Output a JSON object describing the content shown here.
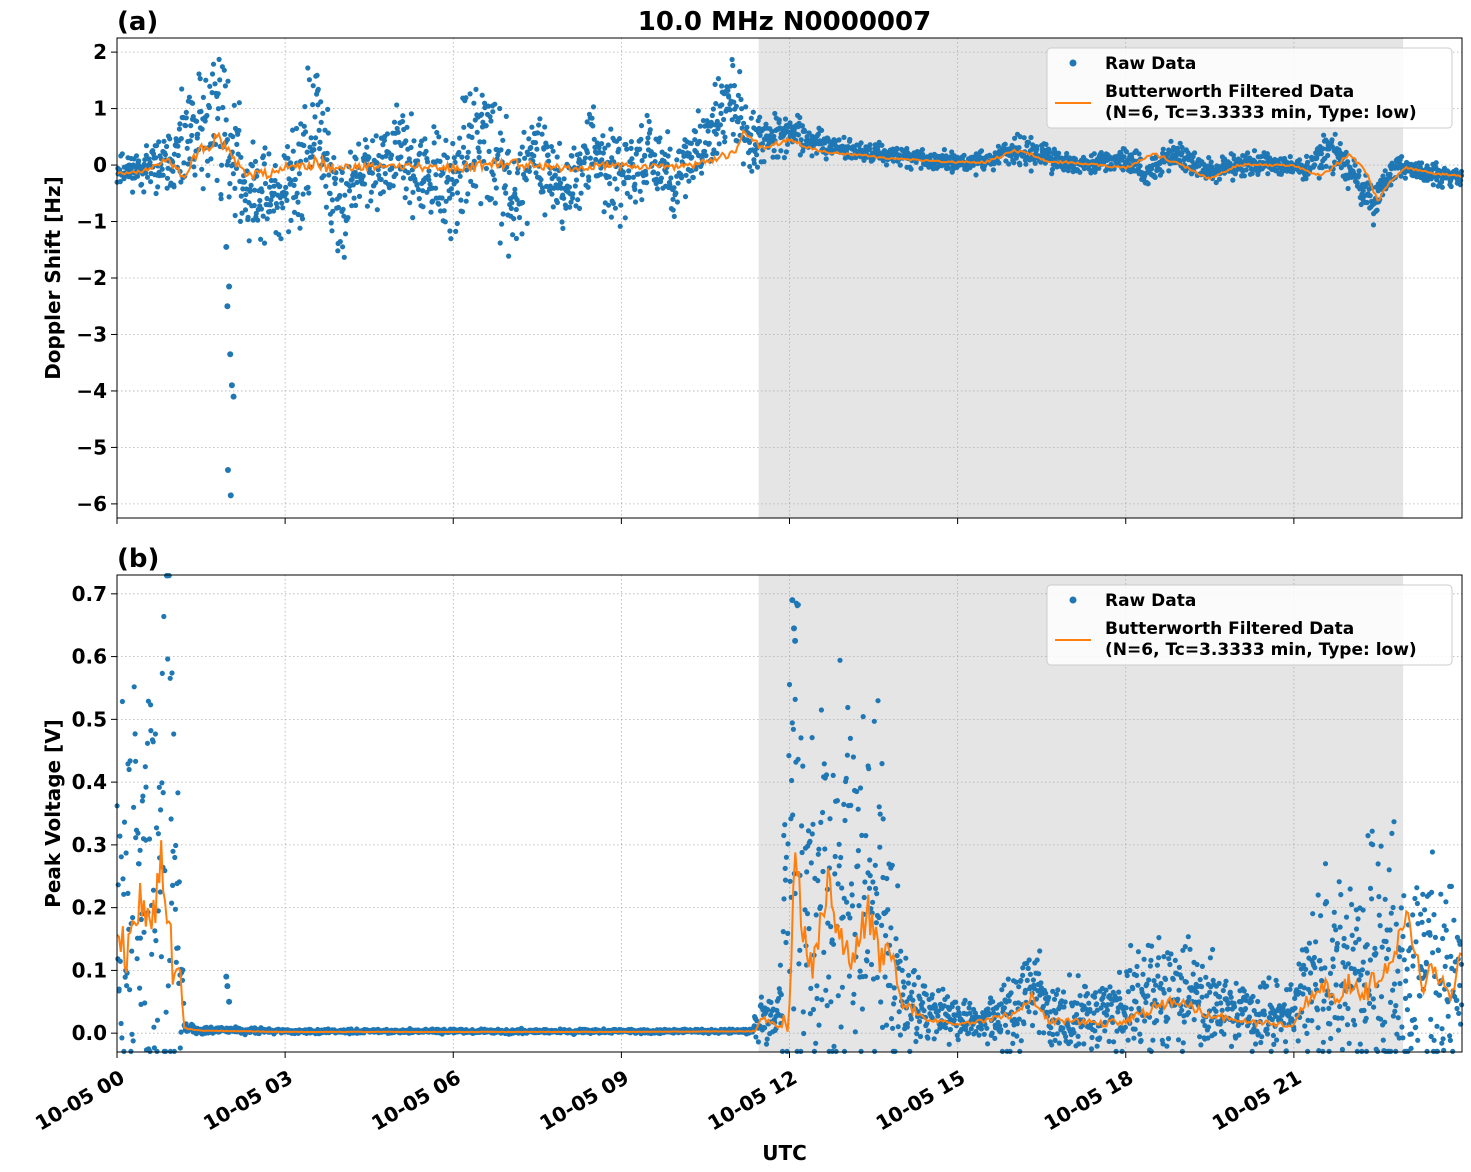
{
  "figure": {
    "title": "10.0 MHz N0000007",
    "xlabel": "UTC",
    "x_ticks": [
      "10-05 00",
      "10-05 03",
      "10-05 06",
      "10-05 09",
      "10-05 12",
      "10-05 15",
      "10-05 18",
      "10-05 21"
    ],
    "x_tick_hours": [
      0,
      3,
      6,
      9,
      12,
      15,
      18,
      21
    ],
    "x_range_hours": [
      0,
      24
    ],
    "shaded_span_hours": [
      11.45,
      22.95
    ],
    "colors": {
      "raw": "#1f77b4",
      "filtered": "#ff7f0e",
      "shade": "#e5e5e5"
    }
  },
  "chart_data": [
    {
      "type": "scatter",
      "panel_label": "(a)",
      "title": "10.0 MHz N0000007",
      "ylabel": "Doppler Shift [Hz]",
      "ylim": [
        -6.25,
        2.25
      ],
      "y_ticks": [
        2,
        1,
        0,
        -1,
        -2,
        -3,
        -4,
        -5,
        -6
      ],
      "y_tick_labels": [
        "2",
        "1",
        "0",
        "−1",
        "−2",
        "−3",
        "−4",
        "−5",
        "−6"
      ],
      "grid": true,
      "legend_position": "top-right",
      "legend": [
        "Raw Data",
        "Butterworth Filtered Data",
        "(N=6, Tc=3.3333 min, Type: low)"
      ],
      "series": [
        {
          "name": "Raw Data",
          "style": "points",
          "x": [
            0,
            0.5,
            1.0,
            1.2,
            1.5,
            1.8,
            2.0,
            2.3,
            2.6,
            3.0,
            3.3,
            3.6,
            3.9,
            4.2,
            4.6,
            5.0,
            5.5,
            6.0,
            6.5,
            7.0,
            7.5,
            8.0,
            8.5,
            9.0,
            9.5,
            10.0,
            10.5,
            10.8,
            11.1,
            11.3,
            11.6,
            12.0,
            12.4,
            12.8,
            13.2,
            13.6,
            14.0,
            14.5,
            15.0,
            15.5,
            16.0,
            16.4,
            16.8,
            17.2,
            17.6,
            18.0,
            18.4,
            18.8,
            19.2,
            19.6,
            20.0,
            20.4,
            20.8,
            21.2,
            21.6,
            22.0,
            22.4,
            22.8,
            23.2,
            23.6,
            24.0
          ],
          "y": [
            -0.1,
            -0.05,
            0.05,
            0.3,
            0.6,
            0.9,
            0.5,
            -0.4,
            -0.5,
            -0.6,
            0.1,
            0.8,
            -0.9,
            -0.3,
            -0.1,
            0.2,
            -0.3,
            -0.4,
            0.7,
            -0.6,
            0.3,
            -0.5,
            0.4,
            -0.4,
            0.3,
            -0.3,
            0.5,
            0.9,
            1.0,
            0.4,
            0.5,
            0.6,
            0.4,
            0.3,
            0.25,
            0.2,
            0.15,
            0.1,
            0.05,
            0.05,
            0.3,
            0.2,
            0.1,
            0.0,
            0.05,
            0.1,
            -0.2,
            0.2,
            0.0,
            -0.1,
            0.0,
            0.05,
            0.0,
            -0.1,
            0.3,
            -0.1,
            -0.7,
            0.0,
            -0.1,
            -0.2,
            -0.2
          ],
          "outliers_x": [
            1.95,
            1.97,
            2.0,
            2.02,
            2.05,
            2.08,
            1.98,
            2.03
          ],
          "outliers_y": [
            -1.45,
            -2.5,
            -2.15,
            -3.35,
            -3.9,
            -4.1,
            -5.4,
            -5.85
          ],
          "spread": [
            0.15,
            0.2,
            0.3,
            0.5,
            0.7,
            0.8,
            0.6,
            0.5,
            0.45,
            0.55,
            0.7,
            0.8,
            0.7,
            0.4,
            0.35,
            0.4,
            0.5,
            0.55,
            0.65,
            0.6,
            0.45,
            0.4,
            0.4,
            0.4,
            0.35,
            0.35,
            0.4,
            0.45,
            0.5,
            0.3,
            0.25,
            0.2,
            0.15,
            0.12,
            0.1,
            0.1,
            0.1,
            0.1,
            0.1,
            0.1,
            0.15,
            0.15,
            0.12,
            0.1,
            0.1,
            0.12,
            0.15,
            0.15,
            0.12,
            0.12,
            0.12,
            0.12,
            0.1,
            0.12,
            0.2,
            0.15,
            0.2,
            0.12,
            0.1,
            0.1,
            0.1
          ]
        },
        {
          "name": "Butterworth Filtered Data",
          "style": "line",
          "x": [
            0,
            0.5,
            0.9,
            1.2,
            1.5,
            1.8,
            2.0,
            2.3,
            2.7,
            3.0,
            3.5,
            4.0,
            5.0,
            6.0,
            7.0,
            8.0,
            9.0,
            10.0,
            10.5,
            11.0,
            11.2,
            11.5,
            12.0,
            12.5,
            13.0,
            14.0,
            15.0,
            15.5,
            16.0,
            16.3,
            16.6,
            17.0,
            18.0,
            18.5,
            19.0,
            19.5,
            20.0,
            21.0,
            21.5,
            22.0,
            22.3,
            22.5,
            22.7,
            23.0,
            23.5,
            24.0
          ],
          "y": [
            -0.15,
            -0.1,
            0.1,
            -0.2,
            0.3,
            0.45,
            0.2,
            -0.2,
            -0.15,
            -0.05,
            0.05,
            -0.05,
            0.0,
            -0.05,
            0.05,
            -0.05,
            0.0,
            -0.05,
            0.05,
            0.2,
            0.6,
            0.3,
            0.45,
            0.25,
            0.2,
            0.1,
            0.05,
            0.05,
            0.25,
            0.2,
            0.05,
            0.05,
            -0.05,
            0.2,
            0.0,
            -0.25,
            0.0,
            0.0,
            -0.2,
            0.2,
            -0.15,
            -0.65,
            -0.3,
            -0.05,
            -0.15,
            -0.2
          ]
        }
      ]
    },
    {
      "type": "scatter",
      "panel_label": "(b)",
      "ylabel": "Peak Voltage [V]",
      "ylim": [
        -0.03,
        0.73
      ],
      "y_ticks": [
        0.7,
        0.6,
        0.5,
        0.4,
        0.3,
        0.2,
        0.1,
        0.0
      ],
      "y_tick_labels": [
        "0.7",
        "0.6",
        "0.5",
        "0.4",
        "0.3",
        "0.2",
        "0.1",
        "0.0"
      ],
      "grid": true,
      "legend_position": "top-right",
      "legend": [
        "Raw Data",
        "Butterworth Filtered Data",
        "(N=6, Tc=3.3333 min, Type: low)"
      ],
      "series": [
        {
          "name": "Raw Data",
          "style": "points",
          "x": [
            0,
            0.2,
            0.4,
            0.6,
            0.8,
            0.9,
            1.0,
            1.1,
            1.2,
            1.5,
            2.0,
            3.0,
            6.0,
            9.0,
            11.3,
            11.5,
            11.8,
            12.0,
            12.1,
            12.3,
            12.6,
            12.9,
            13.2,
            13.5,
            13.8,
            14.0,
            14.5,
            15.0,
            15.5,
            16.0,
            16.3,
            16.7,
            17.0,
            17.5,
            18.0,
            18.5,
            18.8,
            19.2,
            19.6,
            20.0,
            20.5,
            21.0,
            21.3,
            21.6,
            22.0,
            22.3,
            22.6,
            23.0,
            23.4,
            23.8,
            24.0
          ],
          "y": [
            0.15,
            0.22,
            0.18,
            0.25,
            0.35,
            0.45,
            0.28,
            0.15,
            0.01,
            0.005,
            0.005,
            0.003,
            0.003,
            0.003,
            0.003,
            0.025,
            0.03,
            0.25,
            0.45,
            0.2,
            0.18,
            0.25,
            0.2,
            0.22,
            0.15,
            0.06,
            0.03,
            0.02,
            0.02,
            0.04,
            0.07,
            0.03,
            0.03,
            0.03,
            0.04,
            0.06,
            0.08,
            0.06,
            0.05,
            0.03,
            0.03,
            0.03,
            0.08,
            0.1,
            0.1,
            0.12,
            0.1,
            0.12,
            0.1,
            0.08,
            0.06
          ],
          "spread": [
            0.15,
            0.2,
            0.2,
            0.22,
            0.25,
            0.3,
            0.2,
            0.12,
            0.005,
            0.003,
            0.003,
            0.002,
            0.002,
            0.002,
            0.002,
            0.02,
            0.02,
            0.2,
            0.35,
            0.15,
            0.18,
            0.2,
            0.18,
            0.2,
            0.15,
            0.05,
            0.025,
            0.02,
            0.02,
            0.04,
            0.05,
            0.03,
            0.03,
            0.03,
            0.04,
            0.05,
            0.06,
            0.05,
            0.04,
            0.03,
            0.03,
            0.03,
            0.07,
            0.1,
            0.1,
            0.12,
            0.12,
            0.12,
            0.1,
            0.08,
            0.06
          ],
          "outliers_x": [
            1.95,
            1.97,
            2.0,
            12.05,
            12.08,
            12.1
          ],
          "outliers_y": [
            0.09,
            0.075,
            0.05,
            0.69,
            0.645,
            0.625
          ]
        },
        {
          "name": "Butterworth Filtered Data",
          "style": "line",
          "x": [
            0,
            0.2,
            0.4,
            0.6,
            0.8,
            0.9,
            1.0,
            1.1,
            1.2,
            1.5,
            3.0,
            6.0,
            9.0,
            11.4,
            11.5,
            11.8,
            12.0,
            12.1,
            12.2,
            12.4,
            12.7,
            12.9,
            13.1,
            13.4,
            13.6,
            13.8,
            14.0,
            14.5,
            15.0,
            15.5,
            16.0,
            16.3,
            16.6,
            17.0,
            17.5,
            18.0,
            18.5,
            18.8,
            19.2,
            19.5,
            20.0,
            20.5,
            21.0,
            21.2,
            21.5,
            21.8,
            22.0,
            22.3,
            22.5,
            22.8,
            23.0,
            23.3,
            23.5,
            23.8,
            24.0
          ],
          "y": [
            0.17,
            0.12,
            0.22,
            0.15,
            0.3,
            0.18,
            0.1,
            0.12,
            0.008,
            0.004,
            0.002,
            0.002,
            0.002,
            0.003,
            0.025,
            0.01,
            0.02,
            0.33,
            0.2,
            0.1,
            0.24,
            0.15,
            0.1,
            0.2,
            0.12,
            0.15,
            0.05,
            0.02,
            0.015,
            0.02,
            0.03,
            0.06,
            0.02,
            0.02,
            0.015,
            0.02,
            0.04,
            0.05,
            0.04,
            0.03,
            0.02,
            0.015,
            0.015,
            0.05,
            0.08,
            0.06,
            0.08,
            0.07,
            0.09,
            0.12,
            0.19,
            0.08,
            0.1,
            0.06,
            0.13
          ]
        }
      ]
    }
  ]
}
